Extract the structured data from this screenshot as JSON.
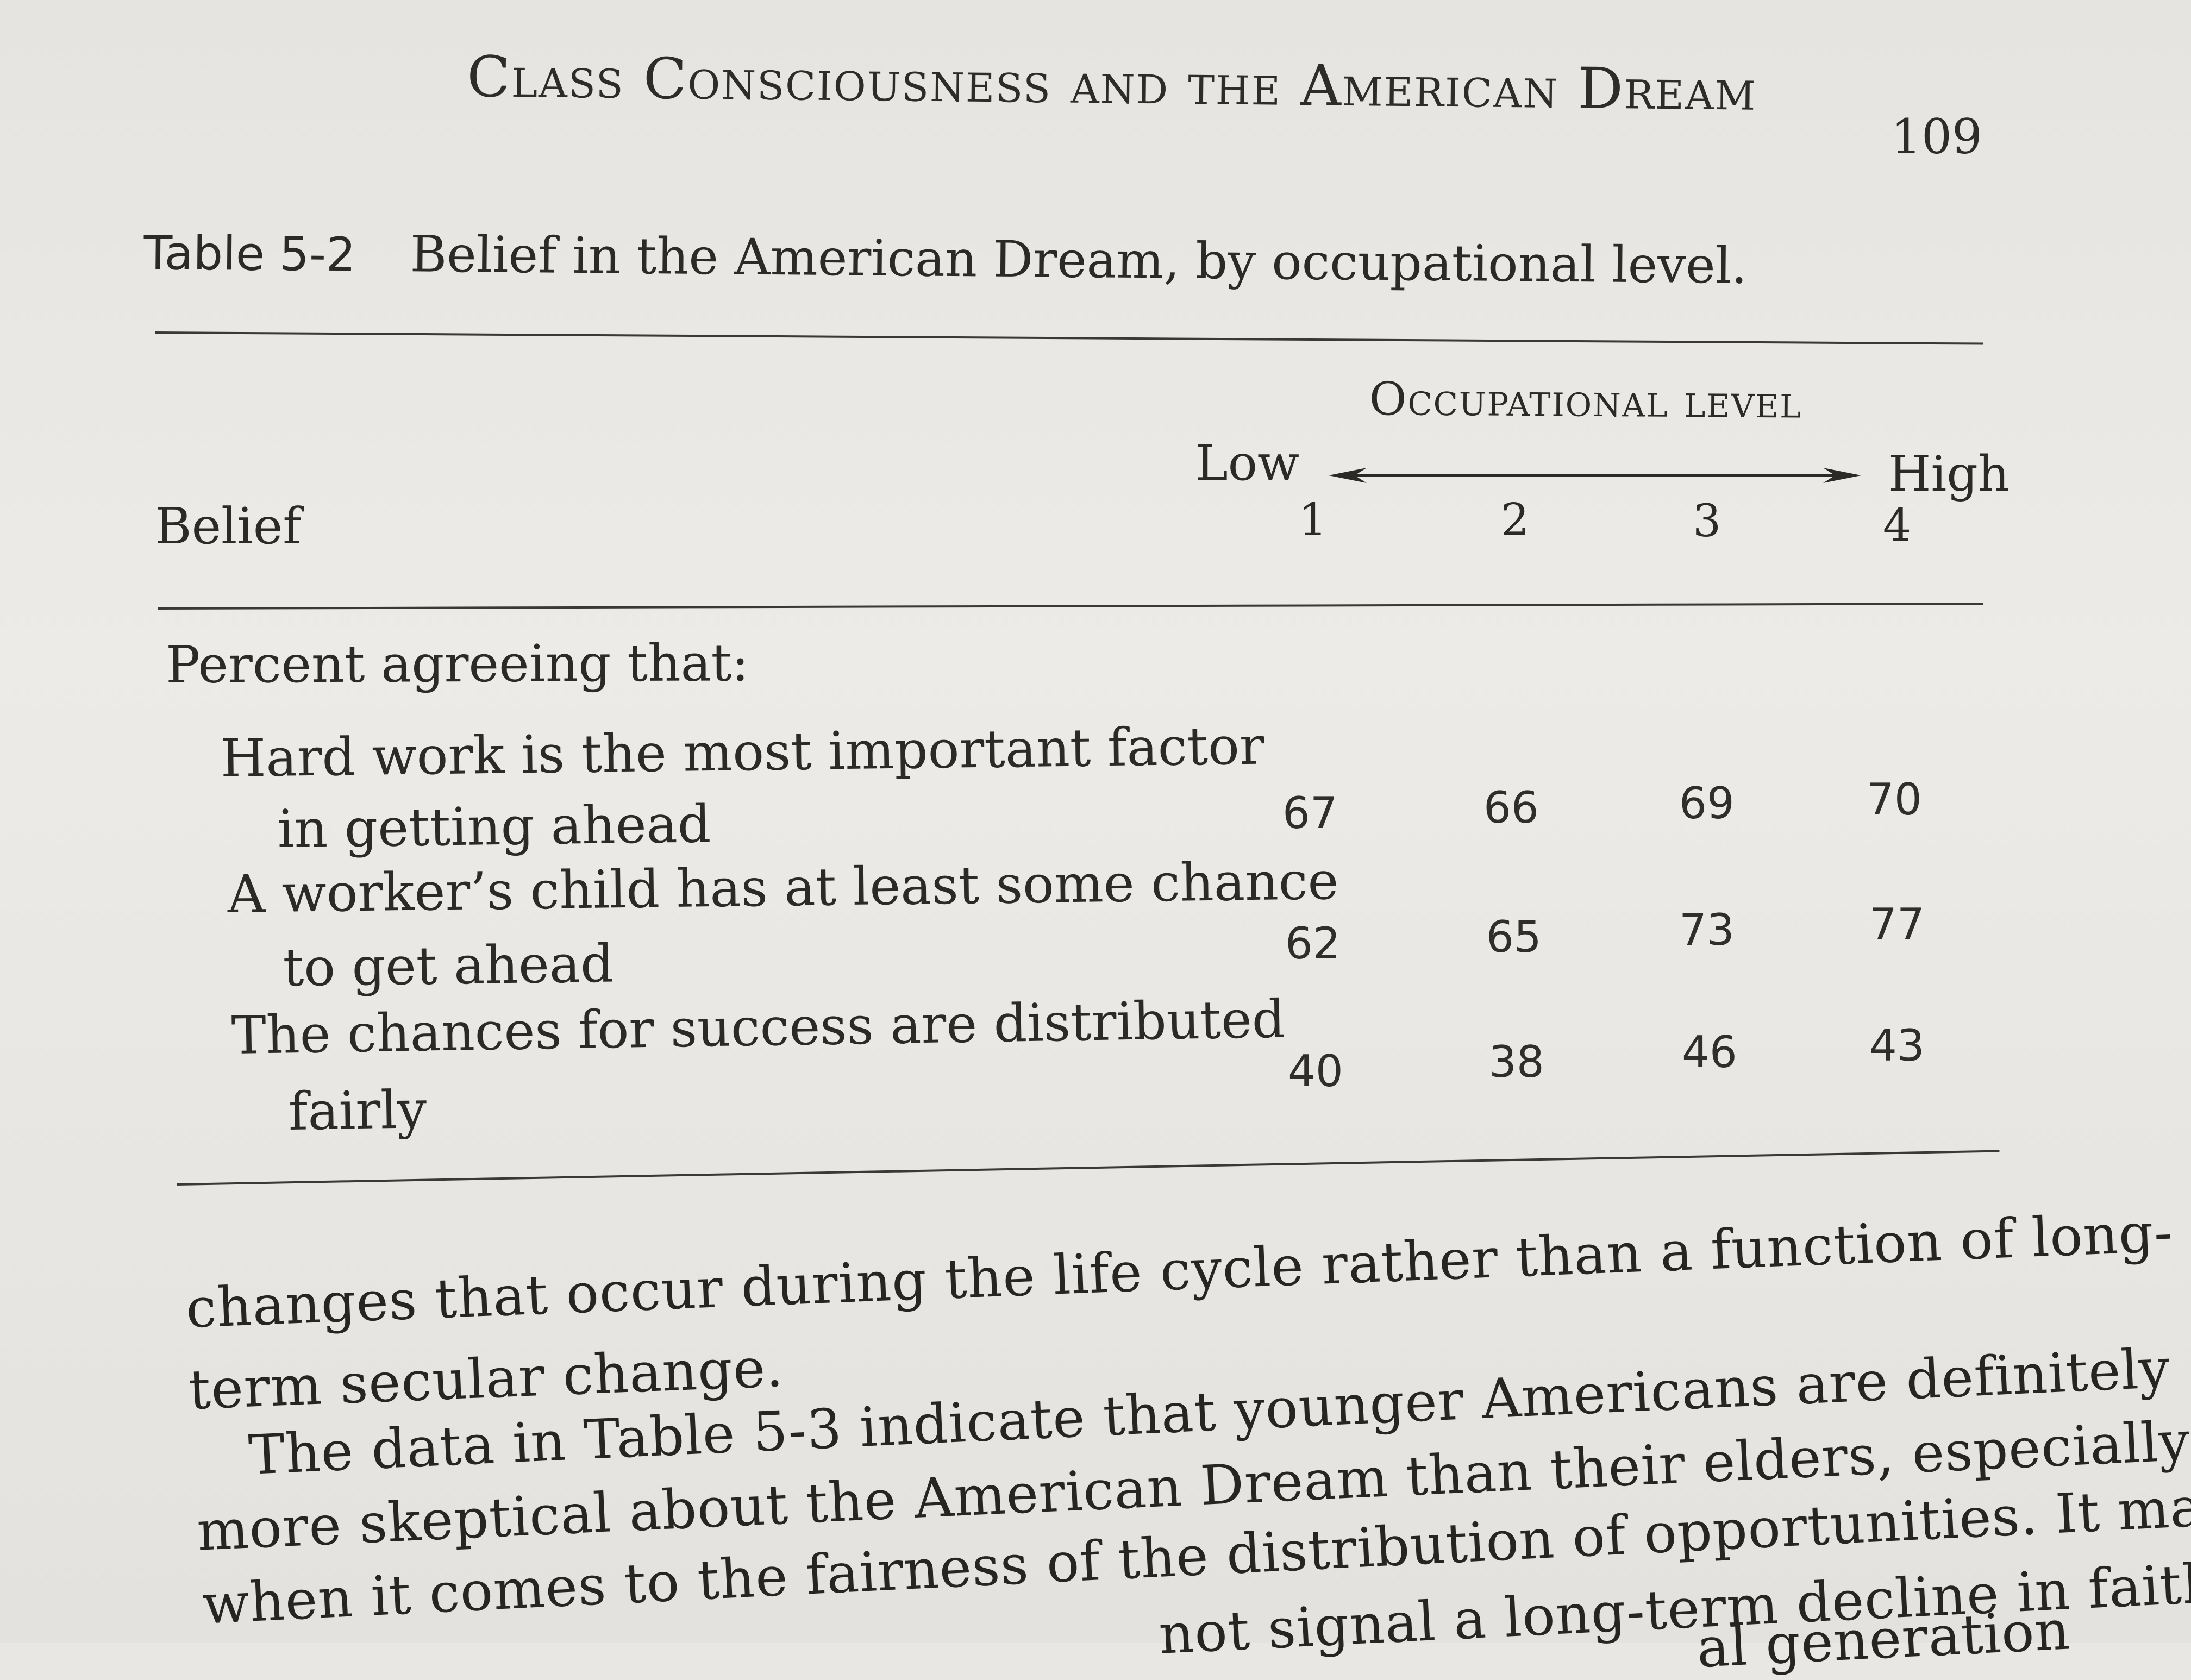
{
  "running_head": "Class Consciousness and the American Dream",
  "page_number": "109",
  "table": {
    "label": "Table 5-2",
    "title": "Belief in the American Dream, by occupational level.",
    "spanner": "Occupational level",
    "low_label": "Low",
    "high_label": "High",
    "stub_header": "Belief",
    "columns": [
      "1",
      "2",
      "3",
      "4"
    ],
    "section_label": "Percent agreeing that:",
    "rows": [
      {
        "line1": "Hard work is the most important factor",
        "line2": "in getting ahead",
        "values": [
          "67",
          "66",
          "69",
          "70"
        ]
      },
      {
        "line1": "A worker’s child has at least some chance",
        "line2": "to get ahead",
        "values": [
          "62",
          "65",
          "73",
          "77"
        ]
      },
      {
        "line1": "The chances for success are distributed",
        "line2": "fairly",
        "values": [
          "40",
          "38",
          "46",
          "43"
        ]
      }
    ]
  },
  "body_lines": [
    "changes that occur during the life cycle rather than a function of long-",
    "term secular change.",
    "The data in Table 5-3 indicate that younger Americans are definitely",
    "more skeptical about the American Dream than their elders, especially",
    "when it comes to the fairness of the distribution of opportunities. It may",
    "not signal a long-term decline in faith",
    "al generation"
  ]
}
